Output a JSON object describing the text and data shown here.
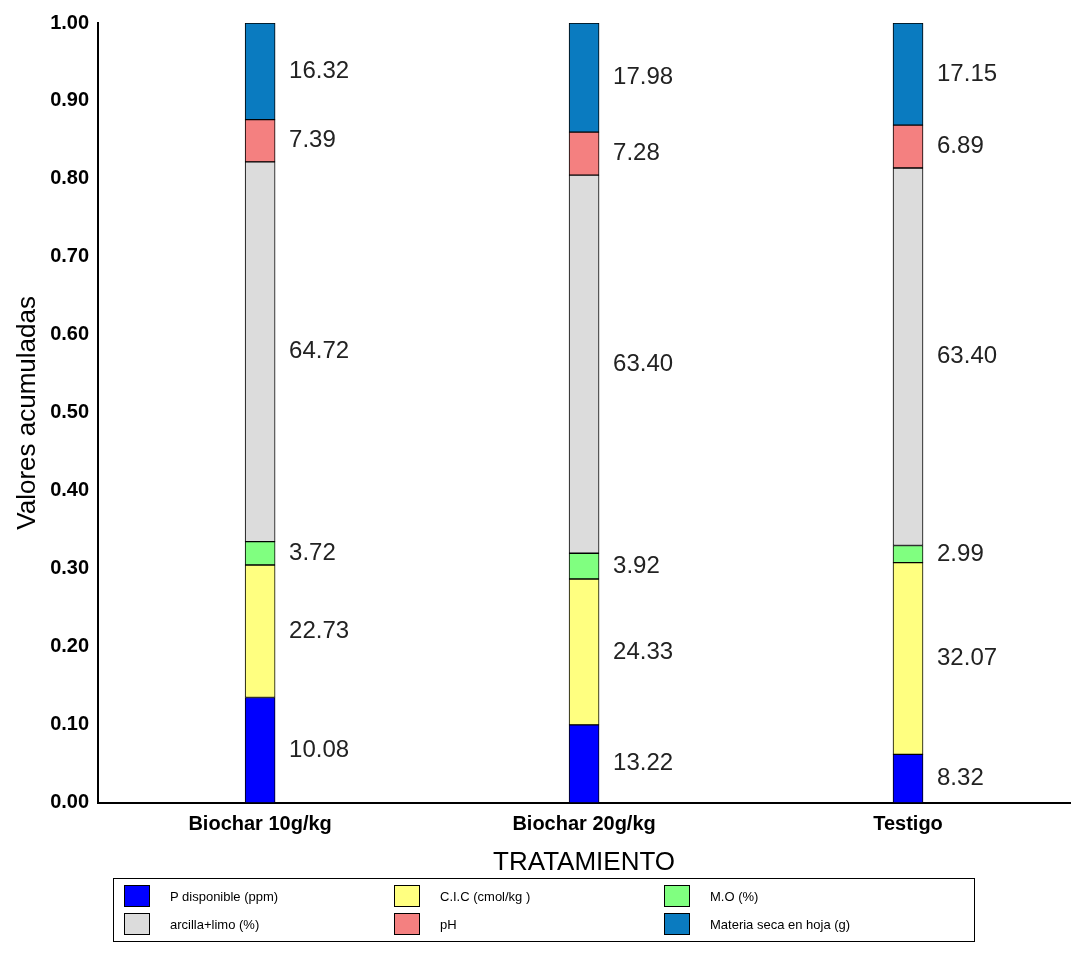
{
  "chart_data": {
    "type": "bar",
    "stacked": true,
    "xlabel": "TRATAMIENTO",
    "ylabel": "Valores acumuladas",
    "categories": [
      "Biochar 10g/kg",
      "Biochar 20g/kg",
      "Testigo"
    ],
    "ylim": [
      0,
      1
    ],
    "yticks": [
      {
        "value": 0,
        "label": "0.00"
      },
      {
        "value": 0.1,
        "label": "0.10"
      },
      {
        "value": 0.2,
        "label": "0.20"
      },
      {
        "value": 0.3,
        "label": "0.30"
      },
      {
        "value": 0.4,
        "label": "0.40"
      },
      {
        "value": 0.5,
        "label": "0.50"
      },
      {
        "value": 0.6,
        "label": "0.60"
      },
      {
        "value": 0.7,
        "label": "0.70"
      },
      {
        "value": 0.8,
        "label": "0.80"
      },
      {
        "value": 0.9,
        "label": "0.90"
      },
      {
        "value": 1,
        "label": "1.00"
      }
    ],
    "grid": false,
    "legend": "bottom",
    "series": [
      {
        "name": "P disponible (ppm)",
        "color": "#0000ff",
        "values": [
          0.135,
          0.1,
          0.062
        ]
      },
      {
        "name": "C.I.C  (cmol/kg )",
        "color": "#ffff80",
        "values": [
          0.17,
          0.187,
          0.246
        ]
      },
      {
        "name": "M.O (%)",
        "color": "#80ff80",
        "values": [
          0.03,
          0.033,
          0.022
        ]
      },
      {
        "name": "arcilla+limo (%)",
        "color": "#dcdcdc",
        "values": [
          0.487,
          0.485,
          0.484
        ]
      },
      {
        "name": "pH",
        "color": "#f48080",
        "values": [
          0.054,
          0.055,
          0.055
        ]
      },
      {
        "name": "Materia seca en hoja (g)",
        "color": "#0a7bc0",
        "values": [
          0.124,
          0.14,
          0.131
        ]
      }
    ],
    "annotations": [
      "10.08",
      "13.22",
      "8.32",
      "22.73",
      "24.33",
      "32.07",
      "3.72",
      "3.92",
      "2.99",
      "64.72",
      "63.40",
      "63.40",
      "7.39",
      "7.28",
      "6.89",
      "16.32",
      "17.98",
      "17.15"
    ]
  }
}
